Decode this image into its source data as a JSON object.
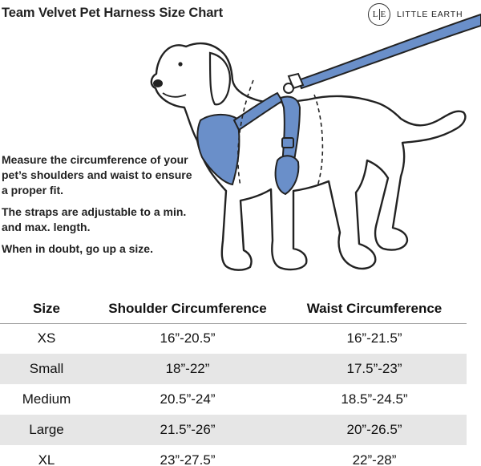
{
  "title": "Team Velvet Pet Harness Size Chart",
  "brand": {
    "logo_left": "L",
    "logo_right": "E",
    "name": "LITTLE EARTH"
  },
  "instructions": [
    "Measure the circumference of your pet’s shoulders and waist to ensure a proper fit.",
    "The straps are adjustable to a min. and max. length.",
    "When in doubt, go up a size."
  ],
  "illustration": {
    "subject": "dog-icon",
    "harness_color": "#6a8fc9",
    "outline_color": "#222222"
  },
  "table": {
    "headers": [
      "Size",
      "Shoulder Circumference",
      "Waist Circumference"
    ],
    "rows": [
      [
        "XS",
        "16”-20.5”",
        "16”-21.5”"
      ],
      [
        "Small",
        "18”-22”",
        "17.5”-23”"
      ],
      [
        "Medium",
        "20.5”-24”",
        "18.5”-24.5”"
      ],
      [
        "Large",
        "21.5”-26”",
        "20”-26.5”"
      ],
      [
        "XL",
        "23”-27.5”",
        "22”-28”"
      ]
    ],
    "shaded_row_color": "#e6e6e6"
  }
}
